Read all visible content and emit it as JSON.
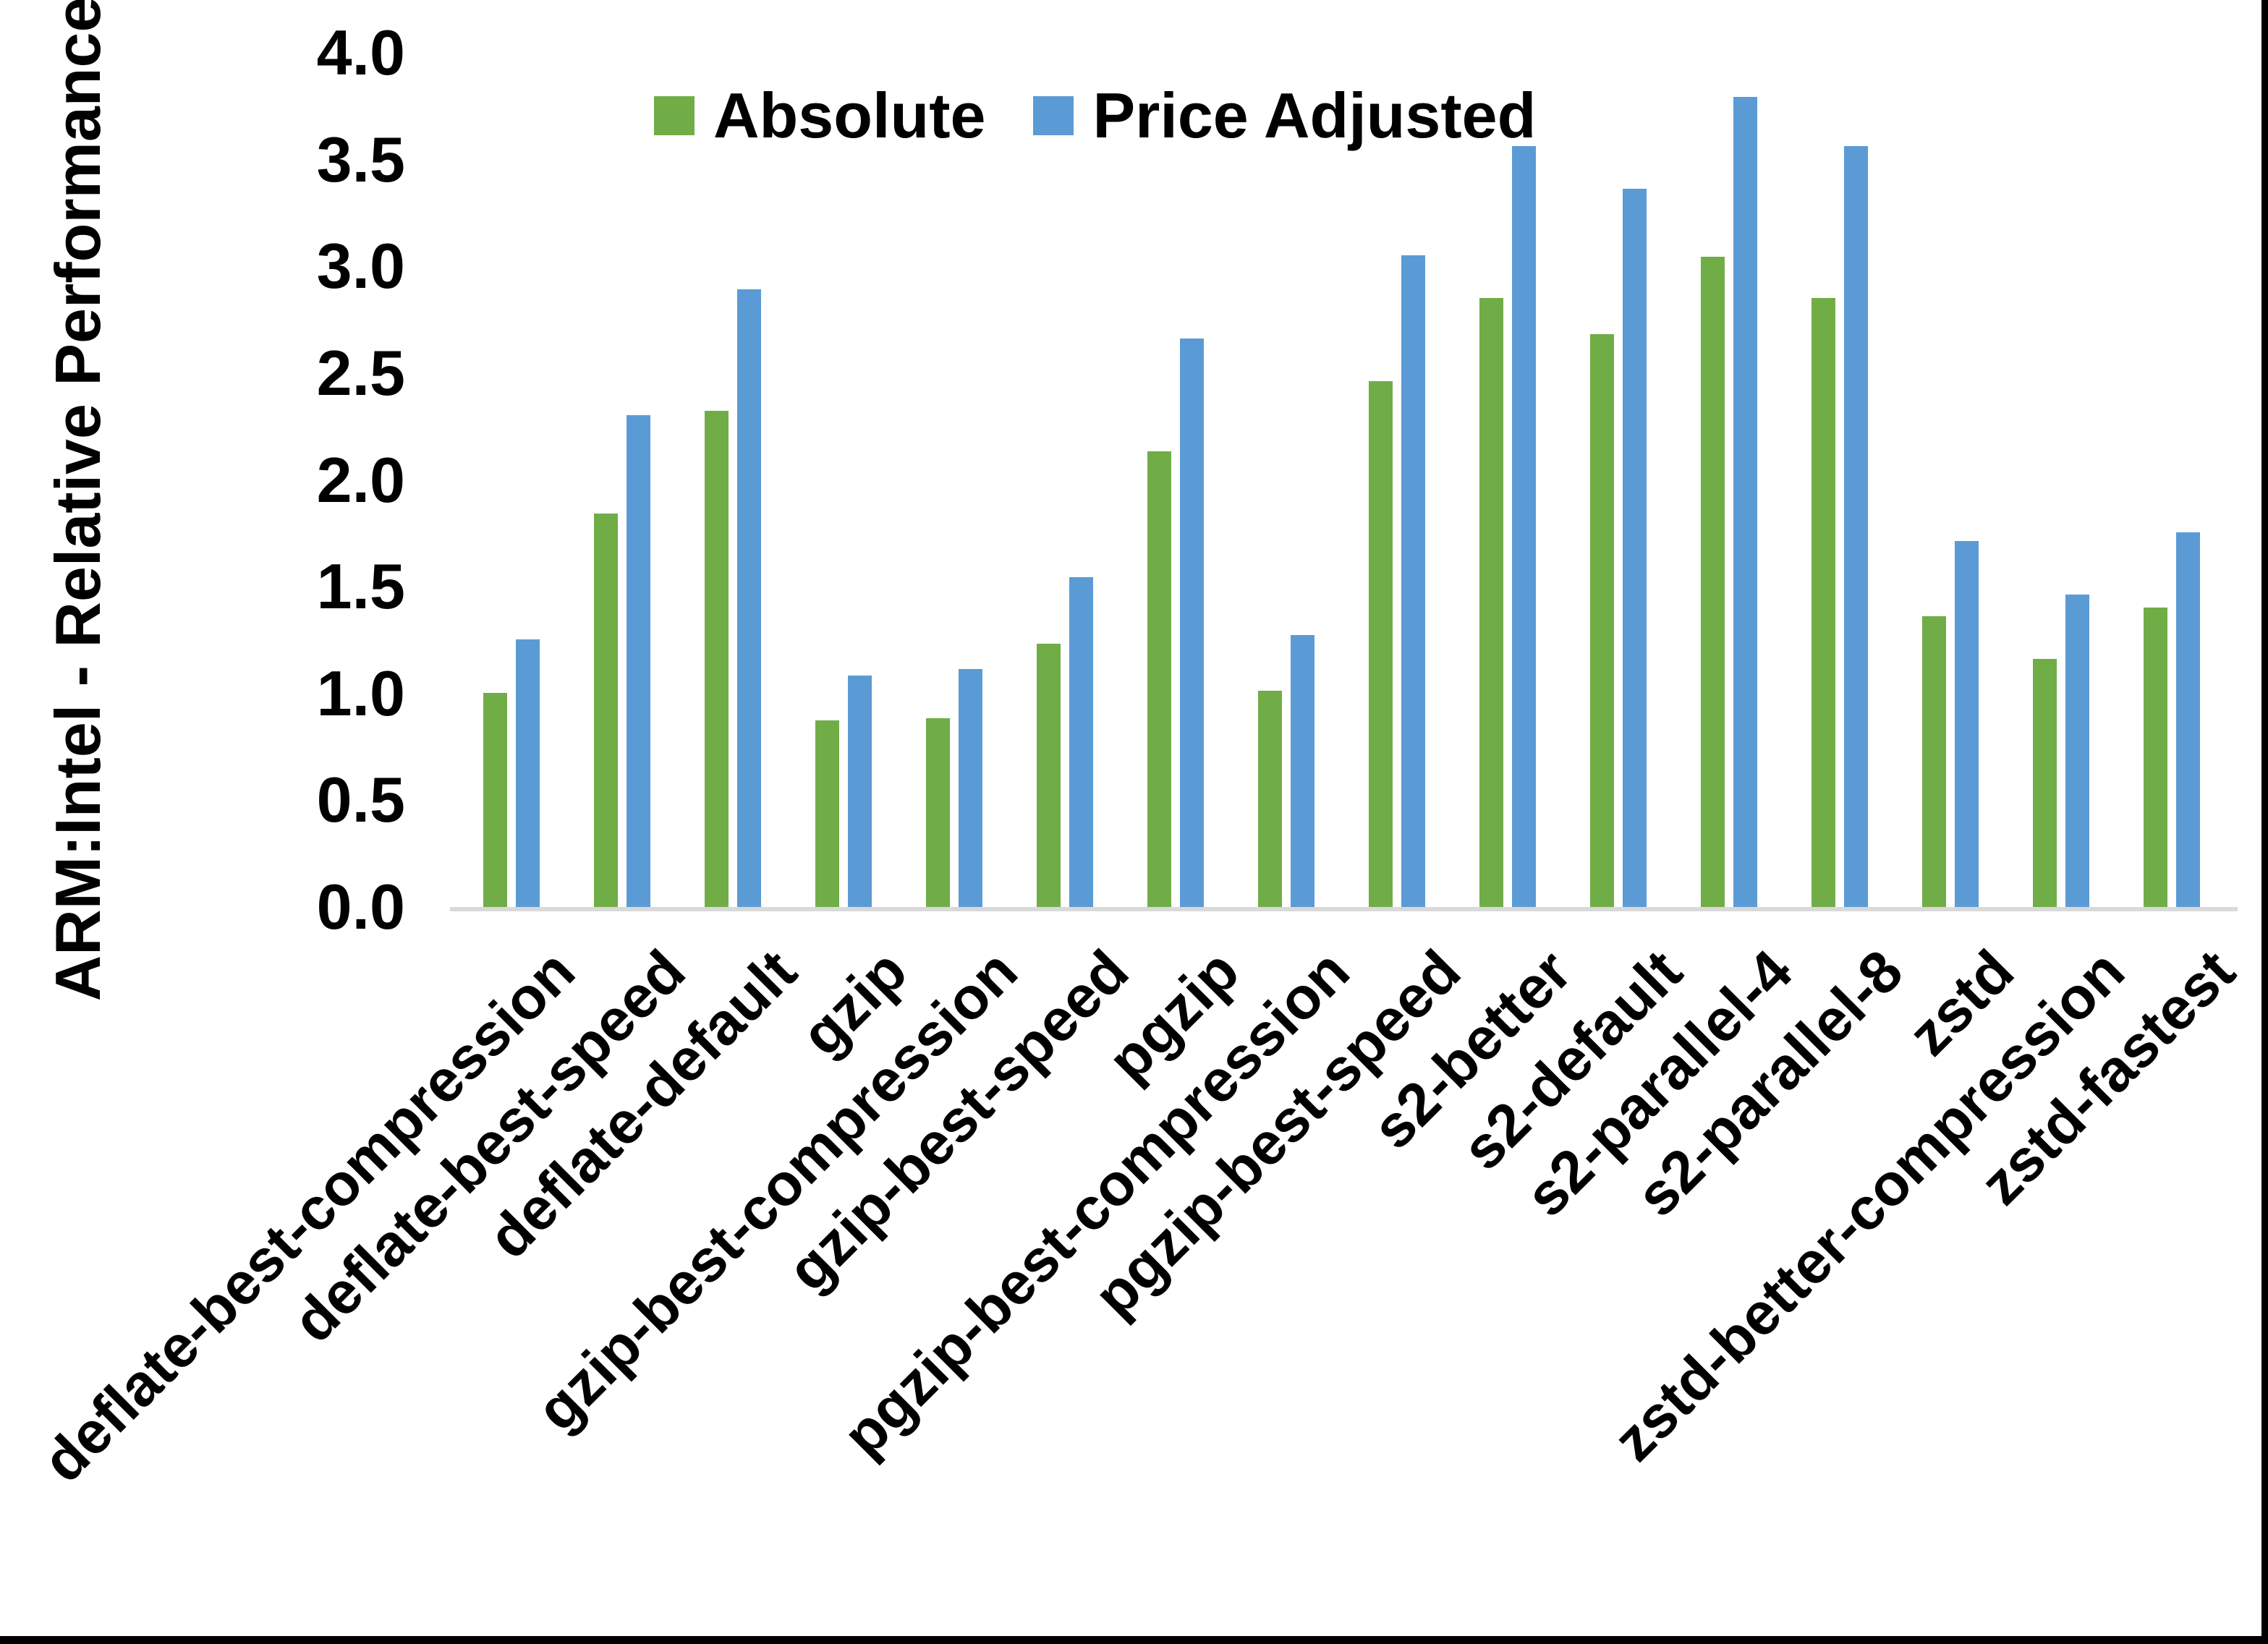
{
  "chart_data": {
    "type": "bar",
    "title": "",
    "ylabel": "ARM:Intel - Relative Performance",
    "xlabel": "",
    "ylim": [
      0.0,
      4.0
    ],
    "ytick_step": 0.5,
    "yticks": [
      "0.0",
      "0.5",
      "1.0",
      "1.5",
      "2.0",
      "2.5",
      "3.0",
      "3.5",
      "4.0"
    ],
    "grid": "off",
    "legend_position": "top",
    "categories": [
      "deflate-best-compression",
      "deflate-best-speed",
      "deflate-default",
      "gzip",
      "gzip-best-compression",
      "gzip-best-speed",
      "pgzip",
      "pgzip-best-compression",
      "pgzip-best-speed",
      "s2-better",
      "s2-default",
      "s2-parallel-4",
      "s2-parallel-8",
      "zstd",
      "zstd-better-compression",
      "zstd-fastest"
    ],
    "series": [
      {
        "name": "Absolute",
        "color": "#70AD47",
        "values": [
          1.01,
          1.85,
          2.33,
          0.88,
          0.89,
          1.24,
          2.14,
          1.02,
          2.47,
          2.86,
          2.69,
          3.05,
          2.86,
          1.37,
          1.17,
          1.41
        ]
      },
      {
        "name": "Price Adjusted",
        "color": "#5B9BD5",
        "values": [
          1.26,
          2.31,
          2.9,
          1.09,
          1.12,
          1.55,
          2.67,
          1.28,
          3.06,
          3.57,
          3.37,
          3.8,
          3.57,
          1.72,
          1.47,
          1.76
        ]
      }
    ],
    "axis_line_color": "#D9D9D9",
    "text_color": "#000000"
  }
}
